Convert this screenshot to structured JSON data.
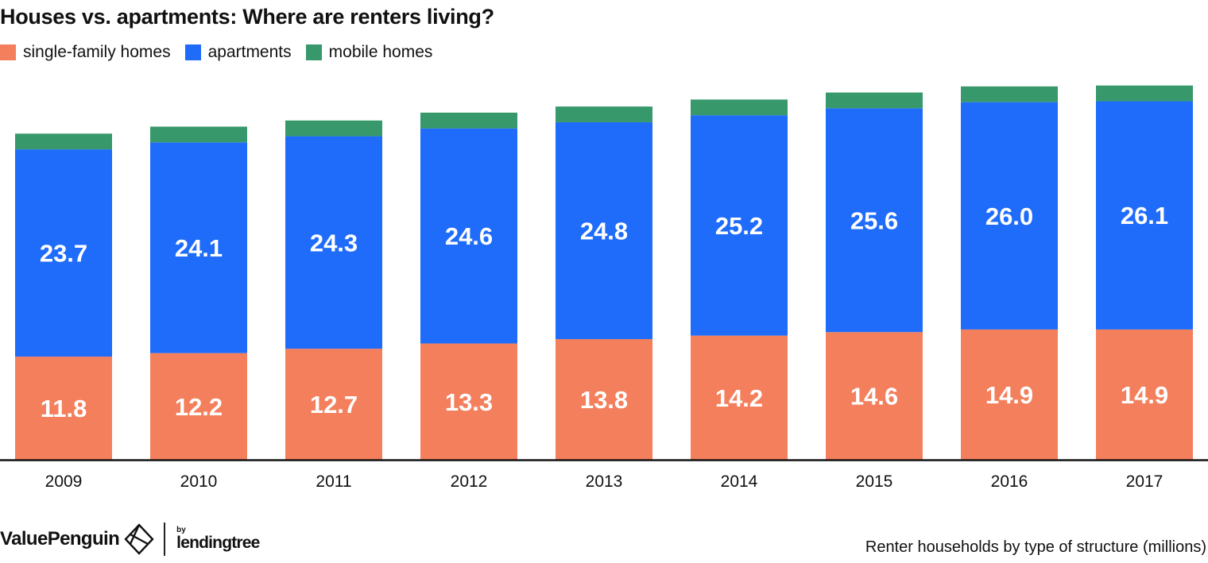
{
  "chart_data": {
    "type": "bar",
    "stacked": true,
    "title": "Houses vs. apartments: Where are renters living?",
    "categories": [
      "2009",
      "2010",
      "2011",
      "2012",
      "2013",
      "2014",
      "2015",
      "2016",
      "2017"
    ],
    "series": [
      {
        "name": "single-family homes",
        "color": "#f47f5c",
        "values": [
          11.8,
          12.2,
          12.7,
          13.3,
          13.8,
          14.2,
          14.6,
          14.9,
          14.9
        ]
      },
      {
        "name": "apartments",
        "color": "#1f6cfa",
        "values": [
          23.7,
          24.1,
          24.3,
          24.6,
          24.8,
          25.2,
          25.6,
          26.0,
          26.1
        ]
      },
      {
        "name": "mobile homes",
        "color": "#37996b",
        "values": [
          1.8,
          1.8,
          1.8,
          1.8,
          1.8,
          1.8,
          1.8,
          1.8,
          1.8
        ]
      }
    ],
    "data_labels": {
      "single-family homes": [
        "11.8",
        "12.2",
        "12.7",
        "13.3",
        "13.8",
        "14.2",
        "14.6",
        "14.9",
        "14.9"
      ],
      "apartments": [
        "23.7",
        "24.1",
        "24.3",
        "24.6",
        "24.8",
        "25.2",
        "25.6",
        "26.0",
        "26.1"
      ]
    },
    "ylim": [
      0,
      43.5
    ],
    "grid": false,
    "legend": "top-left",
    "caption": "Renter households by type of structure (millions)"
  },
  "branding": {
    "logo_text": "ValuePenguin",
    "logo_icon": "penguin-diamond-icon",
    "by_text": "by",
    "partner_text": "lendingtree"
  }
}
